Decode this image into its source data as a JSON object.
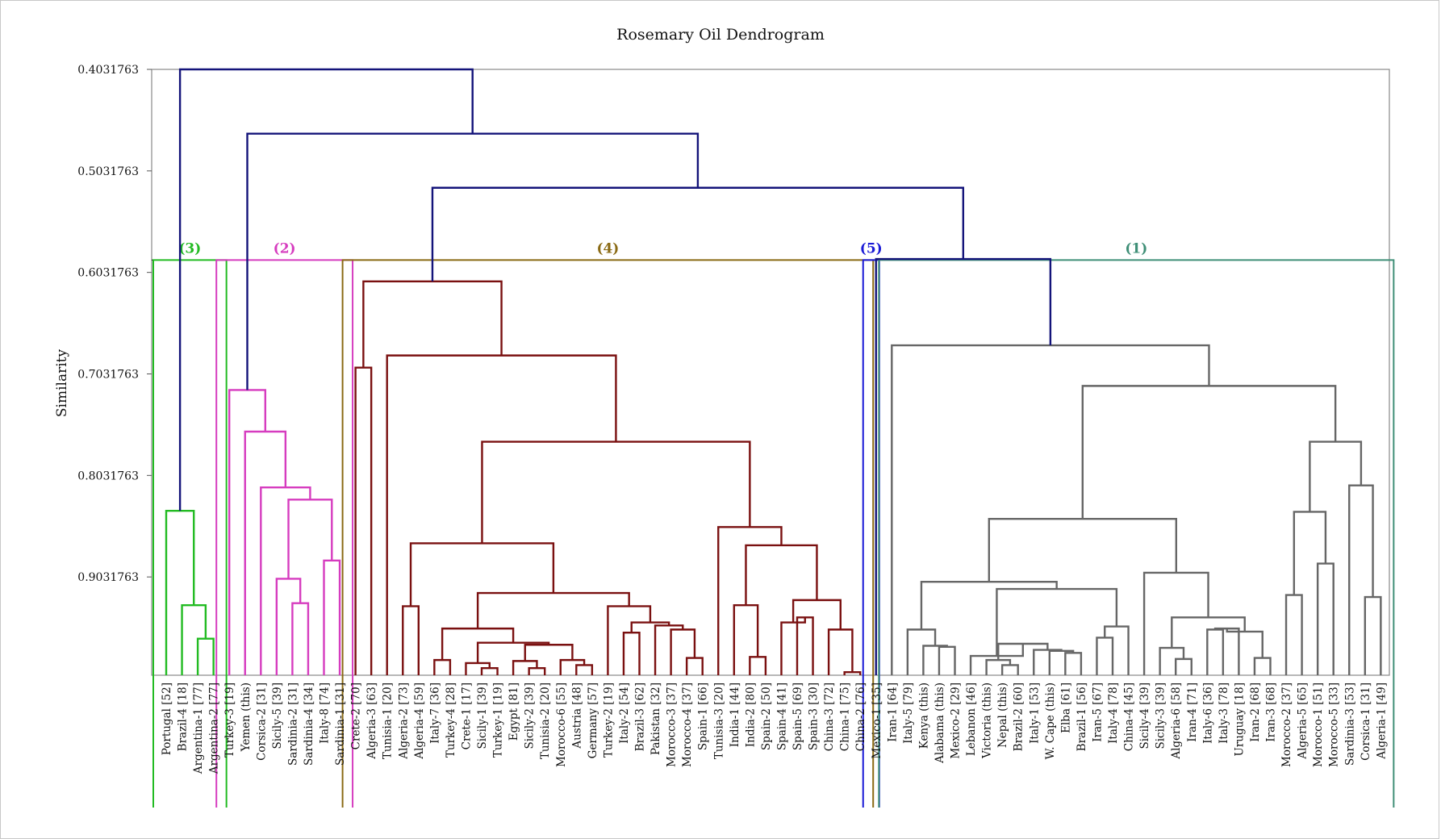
{
  "chart_data": {
    "type": "dendrogram",
    "title": "Rosemary Oil Dendrogram",
    "ylabel": "Similarity",
    "ylim": [
      0.4031763,
      1.0
    ],
    "y_ticks": [
      0.4031763,
      0.5031763,
      0.6031763,
      0.7031763,
      0.8031763,
      0.9031763
    ],
    "y_tick_labels": [
      "0.4031763",
      "0.5031763",
      "0.6031763",
      "0.7031763",
      "0.8031763",
      "0.9031763"
    ],
    "cut_similarity": 0.591,
    "leaves": [
      "Portugal [52]",
      "Brazil-4 [18]",
      "Argentina-1 [77]",
      "Argentina-2 [77]",
      "Turkey-3 [19]",
      "Yemen (this)",
      "Corsica-2 [31]",
      "Sicily-5 [39]",
      "Sardinia-2 [31]",
      "Sardinia-4 [34]",
      "Italy-8 [74]",
      "Sardinia-1 [31]",
      "Crete-2 [70]",
      "Algeria-3 [63]",
      "Tunisia-1 [20]",
      "Algeria-2 [73]",
      "Algeria-4 [59]",
      "Italy-7 [36]",
      "Turkey-4 [28]",
      "Crete-1 [17]",
      "Sicily-1 [39]",
      "Turkey-1 [19]",
      "Egypt [81]",
      "Sicily-2 [39]",
      "Tunisia-2 [20]",
      "Morocco-6 [55]",
      "Austria [48]",
      "Germany [57]",
      "Turkey-2 [19]",
      "Italy-2 [54]",
      "Brazil-3 [62]",
      "Pakistan [32]",
      "Morocco-3 [37]",
      "Morocco-4 [37]",
      "Spain-1 [66]",
      "Tunisia-3 [20]",
      "India-1 [44]",
      "India-2 [80]",
      "Spain-2 [50]",
      "Spain-4 [41]",
      "Spain-5 [69]",
      "Spain-3 [30]",
      "China-3 [72]",
      "China-1 [75]",
      "China-2 [76]",
      "Mexico-1 [35]",
      "Iran-1 [64]",
      "Italy-5 [79]",
      "Kenya (this)",
      "Alabama (this)",
      "Mexico-2 [29]",
      "Lebanon [46]",
      "Victoria (this)",
      "Nepal (this)",
      "Brazil-2 [60]",
      "Italy-1 [53]",
      "W. Cape (this)",
      "Elba [61]",
      "Brazil-1 [56]",
      "Iran-5 [67]",
      "Italy-4 [78]",
      "China-4 [45]",
      "Sicily-4 [39]",
      "Sicily-3 [39]",
      "Algeria-6 [58]",
      "Iran-4 [71]",
      "Italy-6 [36]",
      "Italy-3 [78]",
      "Uruguay [18]",
      "Iran-2 [68]",
      "Iran-3 [68]",
      "Morocco-2 [37]",
      "Algeria-5 [65]",
      "Morocco-1 [51]",
      "Morocco-5 [33]",
      "Sardinia-3 [53]",
      "Corsica-1 [31]",
      "Algeria-1 [49]"
    ],
    "clusters": [
      {
        "label": "(3)",
        "color": "#22bb22",
        "first_leaf": 0,
        "last_leaf": 3
      },
      {
        "label": "(2)",
        "color": "#d63cbf",
        "first_leaf": 4,
        "last_leaf": 11
      },
      {
        "label": "(4)",
        "color": "#8a6a14",
        "first_leaf": 12,
        "last_leaf": 44
      },
      {
        "label": "(5)",
        "color": "#1a1ad6",
        "first_leaf": 45,
        "last_leaf": 45
      },
      {
        "label": "(1)",
        "color": "#3f8f77",
        "first_leaf": 46,
        "last_leaf": 77
      }
    ],
    "branch_colors": {
      "top": "#14147a",
      "c3": "#22bb22",
      "c2": "#d63cbf",
      "c4": "#7a1010",
      "c1": "#666666",
      "c5": "#14147a"
    },
    "merges": [
      {
        "id": "c3a",
        "left": "L2",
        "right": "L3",
        "similarity": 0.964
      },
      {
        "id": "c3b",
        "left": "L1",
        "right": "c3a",
        "similarity": 0.931
      },
      {
        "id": "c3",
        "left": "L0",
        "right": "c3b",
        "similarity": 0.838
      },
      {
        "id": "c2a",
        "left": "L8",
        "right": "L9",
        "similarity": 0.929
      },
      {
        "id": "c2b",
        "left": "L7",
        "right": "c2a",
        "similarity": 0.905
      },
      {
        "id": "c2c",
        "left": "L10",
        "right": "L11",
        "similarity": 0.887
      },
      {
        "id": "c2d",
        "left": "c2b",
        "right": "c2c",
        "similarity": 0.827
      },
      {
        "id": "c2e",
        "left": "L6",
        "right": "c2d",
        "similarity": 0.815
      },
      {
        "id": "c2f",
        "left": "L5",
        "right": "c2e",
        "similarity": 0.76
      },
      {
        "id": "c2",
        "left": "L4",
        "right": "c2f",
        "similarity": 0.719
      },
      {
        "id": "m17_18",
        "left": "L17",
        "right": "L18",
        "similarity": 0.985
      },
      {
        "id": "m20_21",
        "left": "L20",
        "right": "L21",
        "similarity": 0.993
      },
      {
        "id": "m19_2021",
        "left": "L19",
        "right": "m20_21",
        "similarity": 0.988
      },
      {
        "id": "m23_24",
        "left": "L23",
        "right": "L24",
        "similarity": 0.993
      },
      {
        "id": "m22_2324",
        "left": "L22",
        "right": "m23_24",
        "similarity": 0.986
      },
      {
        "id": "m26_27",
        "left": "L26",
        "right": "L27",
        "similarity": 0.99
      },
      {
        "id": "m25_2627",
        "left": "L25",
        "right": "m26_27",
        "similarity": 0.985
      },
      {
        "id": "mC",
        "left": "m22_2324",
        "right": "m25_2627",
        "similarity": 0.97
      },
      {
        "id": "mB",
        "left": "m19_2021",
        "right": "mC",
        "similarity": 0.968
      },
      {
        "id": "mA",
        "left": "m17_18",
        "right": "mB",
        "similarity": 0.954
      },
      {
        "id": "m15_16",
        "left": "L15",
        "right": "L16",
        "similarity": 0.932
      },
      {
        "id": "m30_31",
        "left": "L30",
        "right": "L31",
        "similarity": 0.954
      },
      {
        "id": "m33_34",
        "left": "L33",
        "right": "L34",
        "similarity": 0.983
      },
      {
        "id": "m32_3334",
        "left": "L32",
        "right": "m33_34",
        "similarity": 0.955
      },
      {
        "id": "m3031_32",
        "left": "m30_31",
        "right": "m32_3334",
        "similarity": 0.951
      },
      {
        "id": "m29_r",
        "left": "L29",
        "right": "m3031_32",
        "similarity": 0.948
      },
      {
        "id": "m28_r",
        "left": "L28",
        "right": "m29_r",
        "similarity": 0.932
      },
      {
        "id": "mGermany",
        "left": "mA",
        "right": "m28_r",
        "similarity": 0.919
      },
      {
        "id": "mAlg",
        "left": "m15_16",
        "right": "mGermany",
        "similarity": 0.87
      },
      {
        "id": "m37_38",
        "left": "L37",
        "right": "L38",
        "similarity": 0.931
      },
      {
        "id": "m38b",
        "left": "m37_38",
        "right": "L38",
        "similarity": 0.982
      },
      {
        "id": "m40_41",
        "left": "L40",
        "right": "L41",
        "similarity": 0.943
      },
      {
        "id": "m39_r",
        "left": "L39",
        "right": "m40_41",
        "similarity": 0.948
      },
      {
        "id": "m42_43",
        "left": "L42",
        "right": "L43",
        "similarity": 0.946
      },
      {
        "id": "m44_45",
        "left": "L44",
        "right": "L45",
        "similarity": 0.949
      },
      {
        "id": "mS",
        "left": "m39_r",
        "right": "m42_43",
        "similarity": 0.936
      },
      {
        "id": "mIndia",
        "left": "m37_38",
        "right": "mS",
        "similarity": 0.872
      },
      {
        "id": "mTun",
        "left": "L36",
        "right": "mIndia",
        "similarity": 0.854
      },
      {
        "id": "mDE",
        "left": "mAlg",
        "right": "mTun",
        "similarity": 0.77
      },
      {
        "id": "mCrete",
        "left": "L14",
        "right": "mDE",
        "similarity": 0.685
      },
      {
        "id": "mCrete2",
        "left": "L12",
        "right": "L13",
        "similarity": 0.697
      },
      {
        "id": "c4",
        "left": "mCrete2",
        "right": "mCrete",
        "similarity": 0.612
      },
      {
        "id": "c1",
        "left": "L46",
        "right": "right_group",
        "similarity": 0.676
      },
      {
        "id": "c15",
        "left": "L45",
        "right": "c1",
        "similarity": 0.59
      },
      {
        "id": "m45",
        "left": "c4",
        "right": "c15",
        "similarity": 0.52
      },
      {
        "id": "m2345",
        "left": "c2",
        "right": "m45",
        "similarity": 0.466
      },
      {
        "id": "root",
        "left": "c3",
        "right": "m2345",
        "similarity": 0.403
      }
    ]
  }
}
